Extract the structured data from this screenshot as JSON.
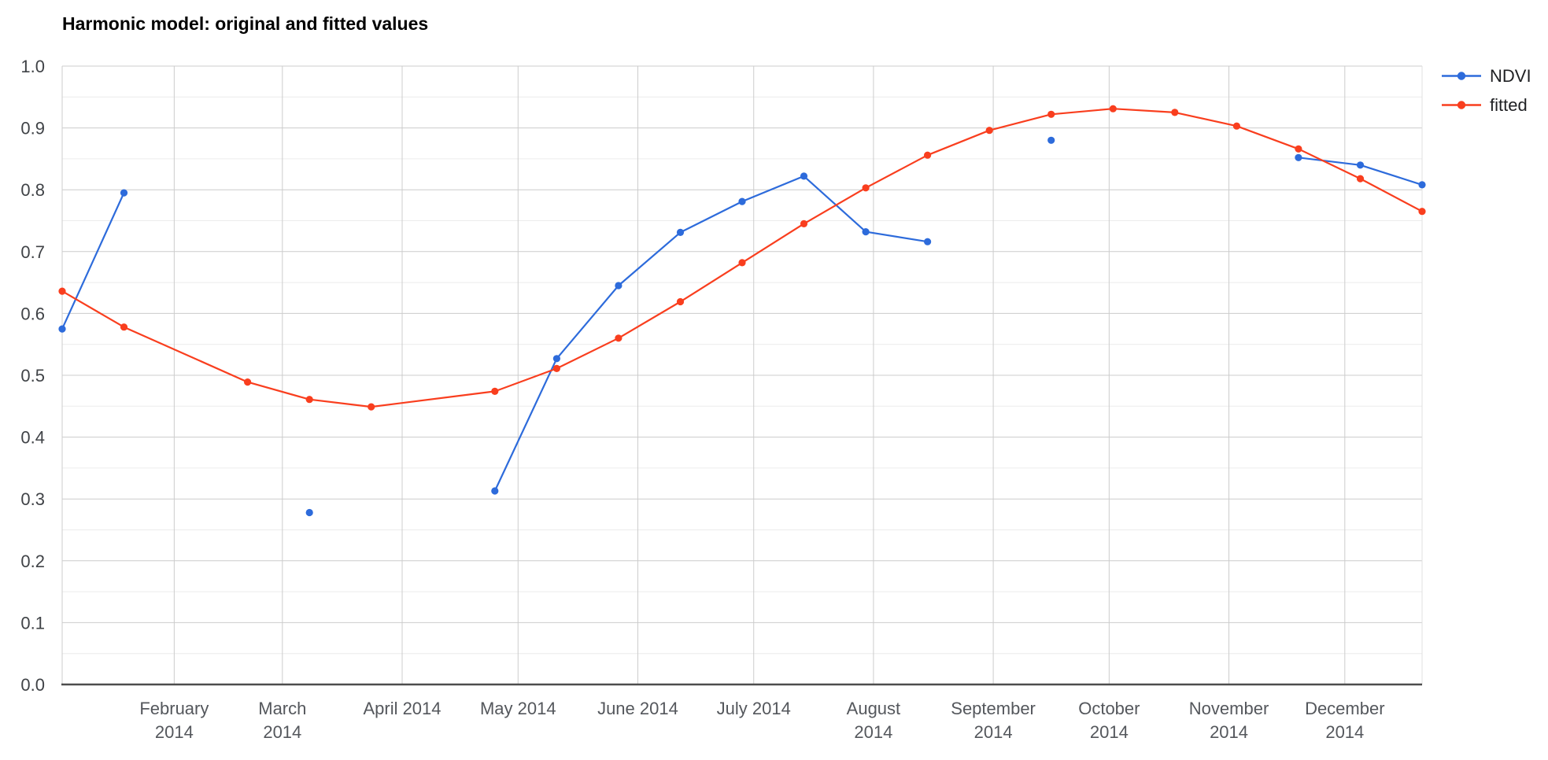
{
  "page": {
    "background": "#ffffff"
  },
  "chart_data": {
    "type": "line",
    "title": "Harmonic model: original and fitted values",
    "legend": {
      "position": "top-right",
      "items": [
        "NDVI",
        "fitted"
      ]
    },
    "x_axis": {
      "kind": "date",
      "year": 2014,
      "domain_days": [
        3,
        355
      ],
      "ticks": [
        {
          "day": 32,
          "label_lines": [
            "February",
            "2014"
          ]
        },
        {
          "day": 60,
          "label_lines": [
            "March",
            "2014"
          ]
        },
        {
          "day": 91,
          "label_lines": [
            "April 2014"
          ]
        },
        {
          "day": 121,
          "label_lines": [
            "May 2014"
          ]
        },
        {
          "day": 152,
          "label_lines": [
            "June 2014"
          ]
        },
        {
          "day": 182,
          "label_lines": [
            "July 2014"
          ]
        },
        {
          "day": 213,
          "label_lines": [
            "August",
            "2014"
          ]
        },
        {
          "day": 244,
          "label_lines": [
            "September",
            "2014"
          ]
        },
        {
          "day": 274,
          "label_lines": [
            "October",
            "2014"
          ]
        },
        {
          "day": 305,
          "label_lines": [
            "November",
            "2014"
          ]
        },
        {
          "day": 335,
          "label_lines": [
            "December",
            "2014"
          ]
        }
      ]
    },
    "y_axis": {
      "min": 0.0,
      "max": 1.0,
      "major_step": 0.1,
      "minor_step": 0.05,
      "tick_labels": [
        "0.0",
        "0.1",
        "0.2",
        "0.3",
        "0.4",
        "0.5",
        "0.6",
        "0.7",
        "0.8",
        "0.9",
        "1.0"
      ]
    },
    "x_days": [
      3,
      19,
      51,
      67,
      83,
      115,
      131,
      147,
      163,
      179,
      195,
      211,
      227,
      243,
      259,
      275,
      291,
      307,
      323,
      339,
      355
    ],
    "x_dates": [
      "2014-01-03",
      "2014-01-19",
      "2014-02-20",
      "2014-03-08",
      "2014-03-24",
      "2014-04-25",
      "2014-05-11",
      "2014-05-27",
      "2014-06-12",
      "2014-06-28",
      "2014-07-14",
      "2014-07-30",
      "2014-08-15",
      "2014-08-31",
      "2014-09-16",
      "2014-10-02",
      "2014-10-18",
      "2014-11-03",
      "2014-11-19",
      "2014-12-05",
      "2014-12-21"
    ],
    "series": [
      {
        "name": "NDVI",
        "color": "#2d6bdb",
        "values": [
          0.575,
          0.795,
          null,
          0.278,
          null,
          0.313,
          0.527,
          0.645,
          0.731,
          0.781,
          0.822,
          0.732,
          0.716,
          null,
          0.88,
          null,
          null,
          null,
          0.852,
          0.84,
          0.808
        ]
      },
      {
        "name": "fitted",
        "color": "#f93e1e",
        "values": [
          0.636,
          0.578,
          0.489,
          0.461,
          0.449,
          0.474,
          0.511,
          0.56,
          0.619,
          0.682,
          0.745,
          0.803,
          0.856,
          0.896,
          0.922,
          0.931,
          0.925,
          0.903,
          0.866,
          0.818,
          0.765
        ]
      }
    ],
    "colors": {
      "grid_major": "#cccccc",
      "grid_minor": "#ececec",
      "axis_line": "#4d4d4d",
      "title_text": "#000000",
      "y_label_text": "#404347",
      "x_label_text": "#54575c",
      "legend_text": "#1f2023"
    }
  }
}
